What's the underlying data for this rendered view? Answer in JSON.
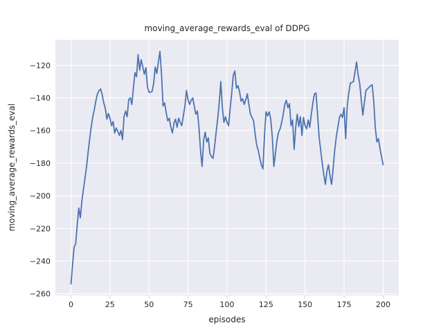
{
  "chart_data": {
    "type": "line",
    "title": "moving_average_rewards_eval of DDPG",
    "xlabel": "episodes",
    "ylabel": "moving_average_rewards_eval",
    "legend": false,
    "grid": true,
    "style": "seaborn-darkgrid",
    "colors": {
      "line": "#4c72b0",
      "plot_background": "#eaeaf2",
      "grid": "#ffffff",
      "text": "#262626",
      "figure_background": "#ffffff"
    },
    "xlim": [
      -10,
      210
    ],
    "ylim": [
      -261.1,
      -104.4
    ],
    "xticks": [
      0,
      25,
      50,
      75,
      100,
      125,
      150,
      175,
      200
    ],
    "yticks": [
      -260,
      -240,
      -220,
      -200,
      -180,
      -160,
      -140,
      -120
    ],
    "x_start": 0,
    "x_step": 1,
    "values": [
      -254.0,
      -242.5,
      -231.5,
      -229.5,
      -218.0,
      -207.5,
      -213.5,
      -203.0,
      -196.0,
      -189.0,
      -182.0,
      -173.0,
      -165.0,
      -157.5,
      -151.5,
      -147.0,
      -141.5,
      -137.5,
      -135.5,
      -134.5,
      -138.0,
      -143.0,
      -146.5,
      -153.0,
      -149.5,
      -152.5,
      -157.0,
      -154.5,
      -161.5,
      -158.5,
      -160.5,
      -163.0,
      -160.0,
      -165.5,
      -151.5,
      -148.0,
      -151.5,
      -141.0,
      -140.0,
      -144.0,
      -134.0,
      -124.5,
      -127.0,
      -113.5,
      -123.0,
      -116.5,
      -121.0,
      -125.5,
      -121.5,
      -133.0,
      -136.5,
      -136.5,
      -136.0,
      -131.0,
      -121.0,
      -125.0,
      -118.0,
      -111.5,
      -125.0,
      -145.0,
      -143.0,
      -149.0,
      -154.0,
      -152.5,
      -158.0,
      -161.5,
      -155.5,
      -153.0,
      -158.0,
      -152.5,
      -155.0,
      -157.0,
      -151.0,
      -145.0,
      -135.5,
      -141.0,
      -144.0,
      -141.5,
      -140.0,
      -145.0,
      -150.0,
      -148.0,
      -158.0,
      -172.0,
      -182.0,
      -166.0,
      -161.0,
      -167.0,
      -164.5,
      -174.0,
      -176.0,
      -177.0,
      -170.0,
      -161.0,
      -153.0,
      -143.0,
      -130.0,
      -146.0,
      -155.0,
      -151.5,
      -155.0,
      -157.0,
      -146.5,
      -137.0,
      -126.0,
      -123.5,
      -134.0,
      -132.5,
      -136.0,
      -142.0,
      -140.5,
      -144.0,
      -141.0,
      -137.5,
      -144.0,
      -150.0,
      -152.0,
      -154.0,
      -162.0,
      -169.0,
      -172.0,
      -177.0,
      -181.0,
      -183.5,
      -163.0,
      -148.5,
      -151.0,
      -148.5,
      -153.0,
      -164.0,
      -182.0,
      -174.0,
      -166.0,
      -161.0,
      -159.0,
      -155.0,
      -150.0,
      -144.0,
      -141.5,
      -146.0,
      -143.5,
      -157.0,
      -153.5,
      -171.5,
      -158.0,
      -150.0,
      -157.5,
      -151.5,
      -163.0,
      -152.0,
      -157.0,
      -159.0,
      -153.5,
      -158.0,
      -150.0,
      -143.0,
      -137.5,
      -137.0,
      -150.0,
      -164.0,
      -172.0,
      -180.0,
      -187.0,
      -193.0,
      -185.0,
      -181.0,
      -188.0,
      -193.0,
      -183.0,
      -172.0,
      -164.0,
      -158.0,
      -152.0,
      -150.0,
      -152.0,
      -146.0,
      -165.0,
      -145.0,
      -137.0,
      -131.0,
      -130.5,
      -130.0,
      -124.0,
      -118.0,
      -126.0,
      -131.0,
      -141.0,
      -150.5,
      -143.0,
      -135.5,
      -134.5,
      -133.5,
      -132.5,
      -132.0,
      -142.0,
      -158.0,
      -167.0,
      -165.0,
      -171.0,
      -176.0,
      -181.0
    ]
  }
}
